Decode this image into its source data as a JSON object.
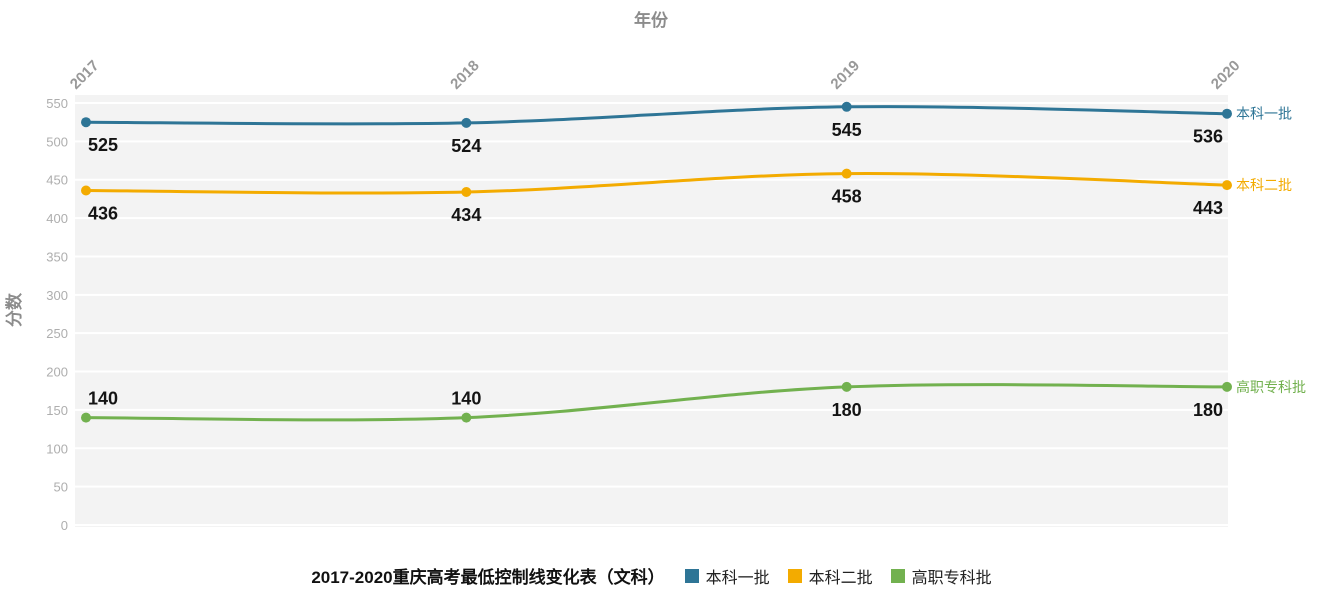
{
  "chart_data": {
    "type": "line",
    "title": "2017-2020重庆高考最低控制线变化表（文科）",
    "x_title": "年份",
    "y_title": "分数",
    "categories": [
      "2017",
      "2018",
      "2019",
      "2020"
    ],
    "series": [
      {
        "name": "本科一批",
        "values": [
          525,
          524,
          545,
          536
        ],
        "color": "#2e7596",
        "label_positions": [
          "below",
          "below",
          "below",
          "below"
        ]
      },
      {
        "name": "本科二批",
        "values": [
          436,
          434,
          458,
          443
        ],
        "color": "#f3ab00",
        "label_positions": [
          "below",
          "below",
          "below",
          "below"
        ]
      },
      {
        "name": "高职专科批",
        "values": [
          140,
          140,
          180,
          180
        ],
        "color": "#72b14f",
        "label_positions": [
          "above",
          "above",
          "below",
          "below"
        ]
      }
    ],
    "y_ticks": [
      0,
      50,
      100,
      150,
      200,
      250,
      300,
      350,
      400,
      450,
      500,
      550
    ],
    "ylim": [
      0,
      550
    ],
    "grid": true,
    "grid_color": "#ffffff",
    "plot_background": "#f3f3f3",
    "legend_position": "bottom",
    "x_axis_position": "top"
  }
}
